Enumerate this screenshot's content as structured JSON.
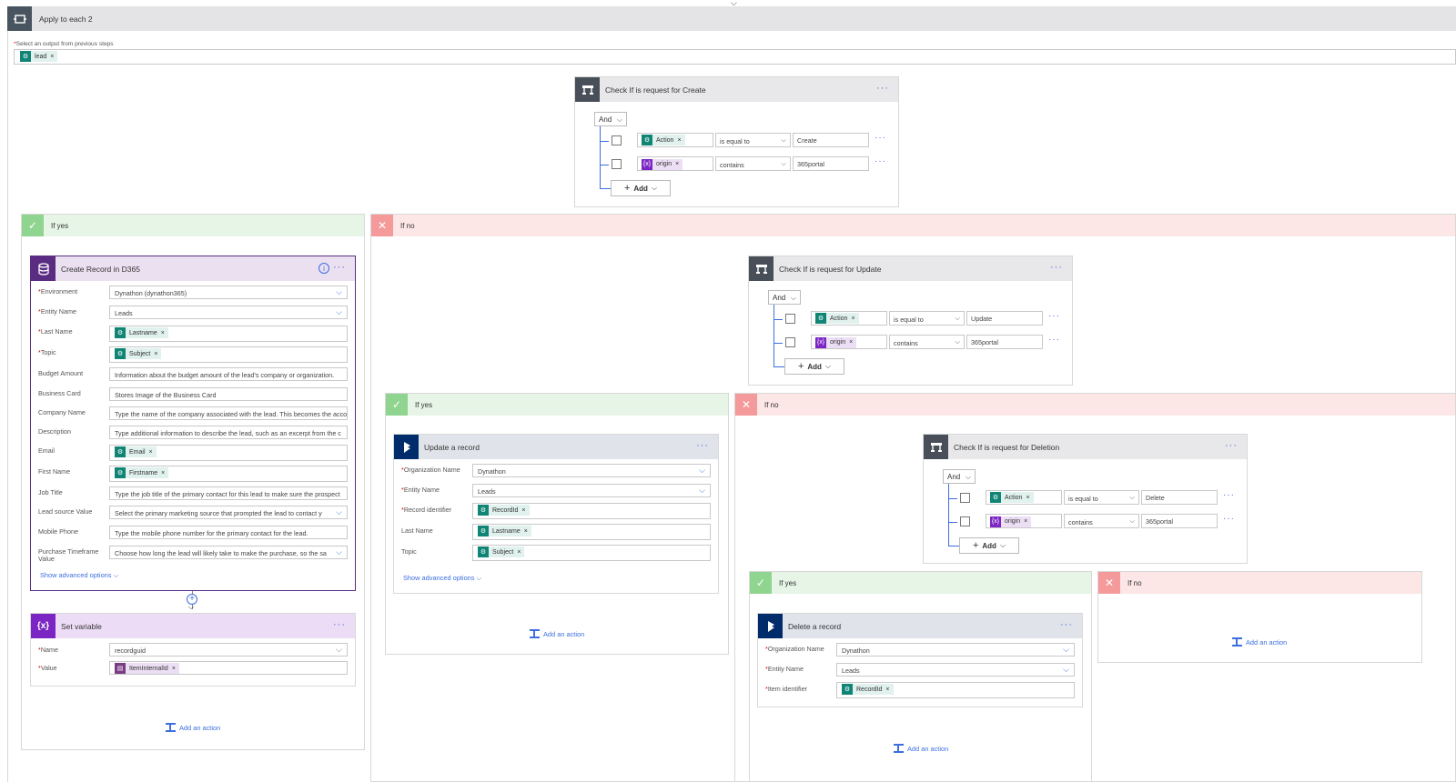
{
  "colors": {
    "condition": "#484f58",
    "yes": "#8fd48f",
    "no": "#f59a9a",
    "d365": "#5b2d82",
    "dynamics": "#002c6b",
    "variable": "#7b25c4",
    "link": "#3c6ee0"
  },
  "loop": {
    "title": "Apply to each 2",
    "select_label": "Select an output from previous steps",
    "token": "lead"
  },
  "cond_create": {
    "title": "Check If is request for Create",
    "and": "And",
    "r1": {
      "left": "Action",
      "op": "is equal to",
      "right": "Create"
    },
    "r2": {
      "left": "origin",
      "op": "contains",
      "right": "365portal"
    },
    "add": "Add"
  },
  "yes1": {
    "label": "If yes"
  },
  "no1": {
    "label": "If no"
  },
  "create_card": {
    "title": "Create Record in D365",
    "fields": [
      {
        "label": "Environment",
        "req": true,
        "value": "Dynathon (dynathon365)",
        "type": "select"
      },
      {
        "label": "Entity Name",
        "req": true,
        "value": "Leads",
        "type": "select"
      },
      {
        "label": "Last Name",
        "req": true,
        "value": "Lastname",
        "type": "token"
      },
      {
        "label": "Topic",
        "req": true,
        "value": "Subject",
        "type": "token"
      },
      {
        "label": "Budget Amount",
        "req": false,
        "value": "Information about the budget amount of the lead's company or organization.",
        "type": "text"
      },
      {
        "label": "Business Card",
        "req": false,
        "value": "Stores Image of the Business Card",
        "type": "text"
      },
      {
        "label": "Company Name",
        "req": false,
        "value": "Type the name of the company associated with the lead. This becomes the acco",
        "type": "text"
      },
      {
        "label": "Description",
        "req": false,
        "value": "Type additional information to describe the lead, such as an excerpt from the c",
        "type": "text"
      },
      {
        "label": "Email",
        "req": false,
        "value": "Email",
        "type": "token"
      },
      {
        "label": "First Name",
        "req": false,
        "value": "Firstname",
        "type": "token"
      },
      {
        "label": "Job Title",
        "req": false,
        "value": "Type the job title of the primary contact for this lead to make sure the prospect",
        "type": "text"
      },
      {
        "label": "Lead source Value",
        "req": false,
        "value": "Select the primary marketing source that prompted the lead to contact y",
        "type": "select"
      },
      {
        "label": "Mobile Phone",
        "req": false,
        "value": "Type the mobile phone number for the primary contact for the lead.",
        "type": "text"
      },
      {
        "label": "Purchase Timeframe Value",
        "req": false,
        "value": "Choose how long the lead will likely take to make the purchase, so the sa",
        "type": "select"
      }
    ],
    "advanced": "Show advanced options"
  },
  "set_var": {
    "title": "Set variable",
    "name_label": "Name",
    "name_value": "recordguid",
    "value_label": "Value",
    "value_token": "ItemInternalId"
  },
  "add_action": "Add an action",
  "cond_update": {
    "title": "Check If is request for Update",
    "and": "And",
    "r1": {
      "left": "Action",
      "op": "is equal to",
      "right": "Update"
    },
    "r2": {
      "left": "origin",
      "op": "contains",
      "right": "365portal"
    },
    "add": "Add"
  },
  "yes2": {
    "label": "If yes"
  },
  "no2": {
    "label": "If no"
  },
  "update_card": {
    "title": "Update a record",
    "org_label": "Organization Name",
    "org_value": "Dynathon",
    "entity_label": "Entity Name",
    "entity_value": "Leads",
    "rec_label": "Record identifier",
    "rec_token": "RecordId",
    "last_label": "Last Name",
    "last_token": "Lastname",
    "topic_label": "Topic",
    "topic_token": "Subject",
    "advanced": "Show advanced options"
  },
  "cond_delete": {
    "title": "Check If is request for Deletion",
    "and": "And",
    "r1": {
      "left": "Action",
      "op": "is equal to",
      "right": "Delete"
    },
    "r2": {
      "left": "origin",
      "op": "contains",
      "right": "365portal"
    },
    "add": "Add"
  },
  "yes3": {
    "label": "If yes"
  },
  "no3": {
    "label": "If no"
  },
  "delete_card": {
    "title": "Delete a record",
    "org_label": "Organization Name",
    "org_value": "Dynathon",
    "entity_label": "Entity Name",
    "entity_value": "Leads",
    "item_label": "Item identifier",
    "item_token": "RecordId"
  }
}
